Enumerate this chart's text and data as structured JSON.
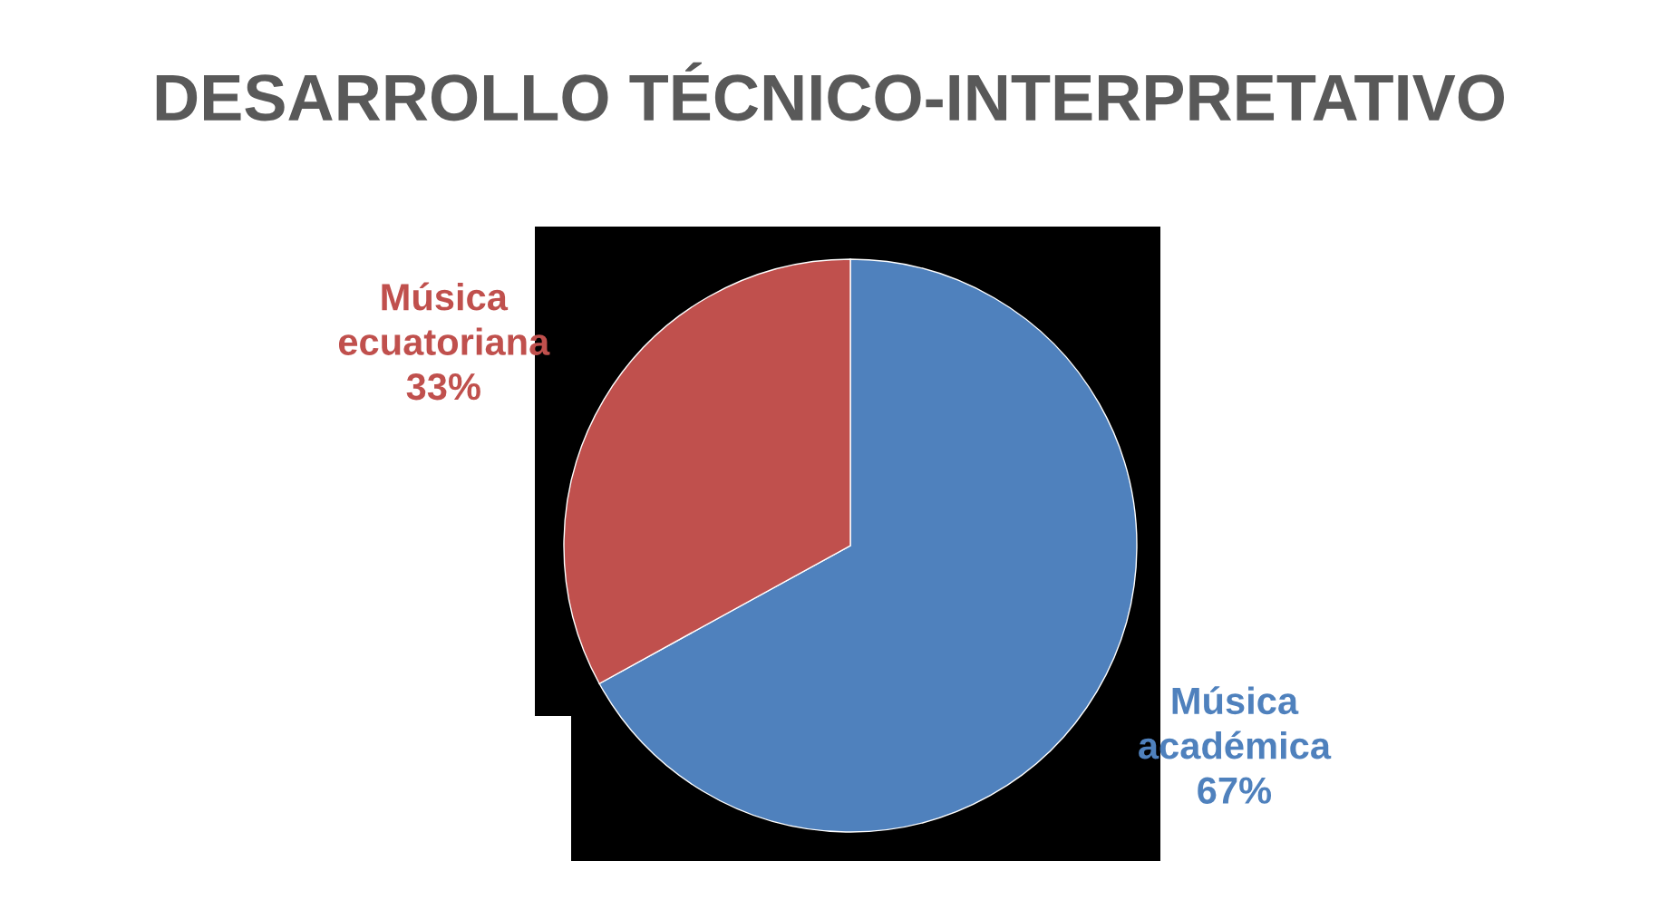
{
  "chart_data": {
    "type": "pie",
    "title": "DESARROLLO TÉCNICO-INTERPRETATIVO",
    "categories": [
      "Música\nacadémica",
      "Música\necuatoriana"
    ],
    "values": [
      67,
      33
    ],
    "colors": [
      "#4f81bd",
      "#c0504d"
    ],
    "value_labels": [
      "67%",
      "33%"
    ],
    "legend": false
  }
}
